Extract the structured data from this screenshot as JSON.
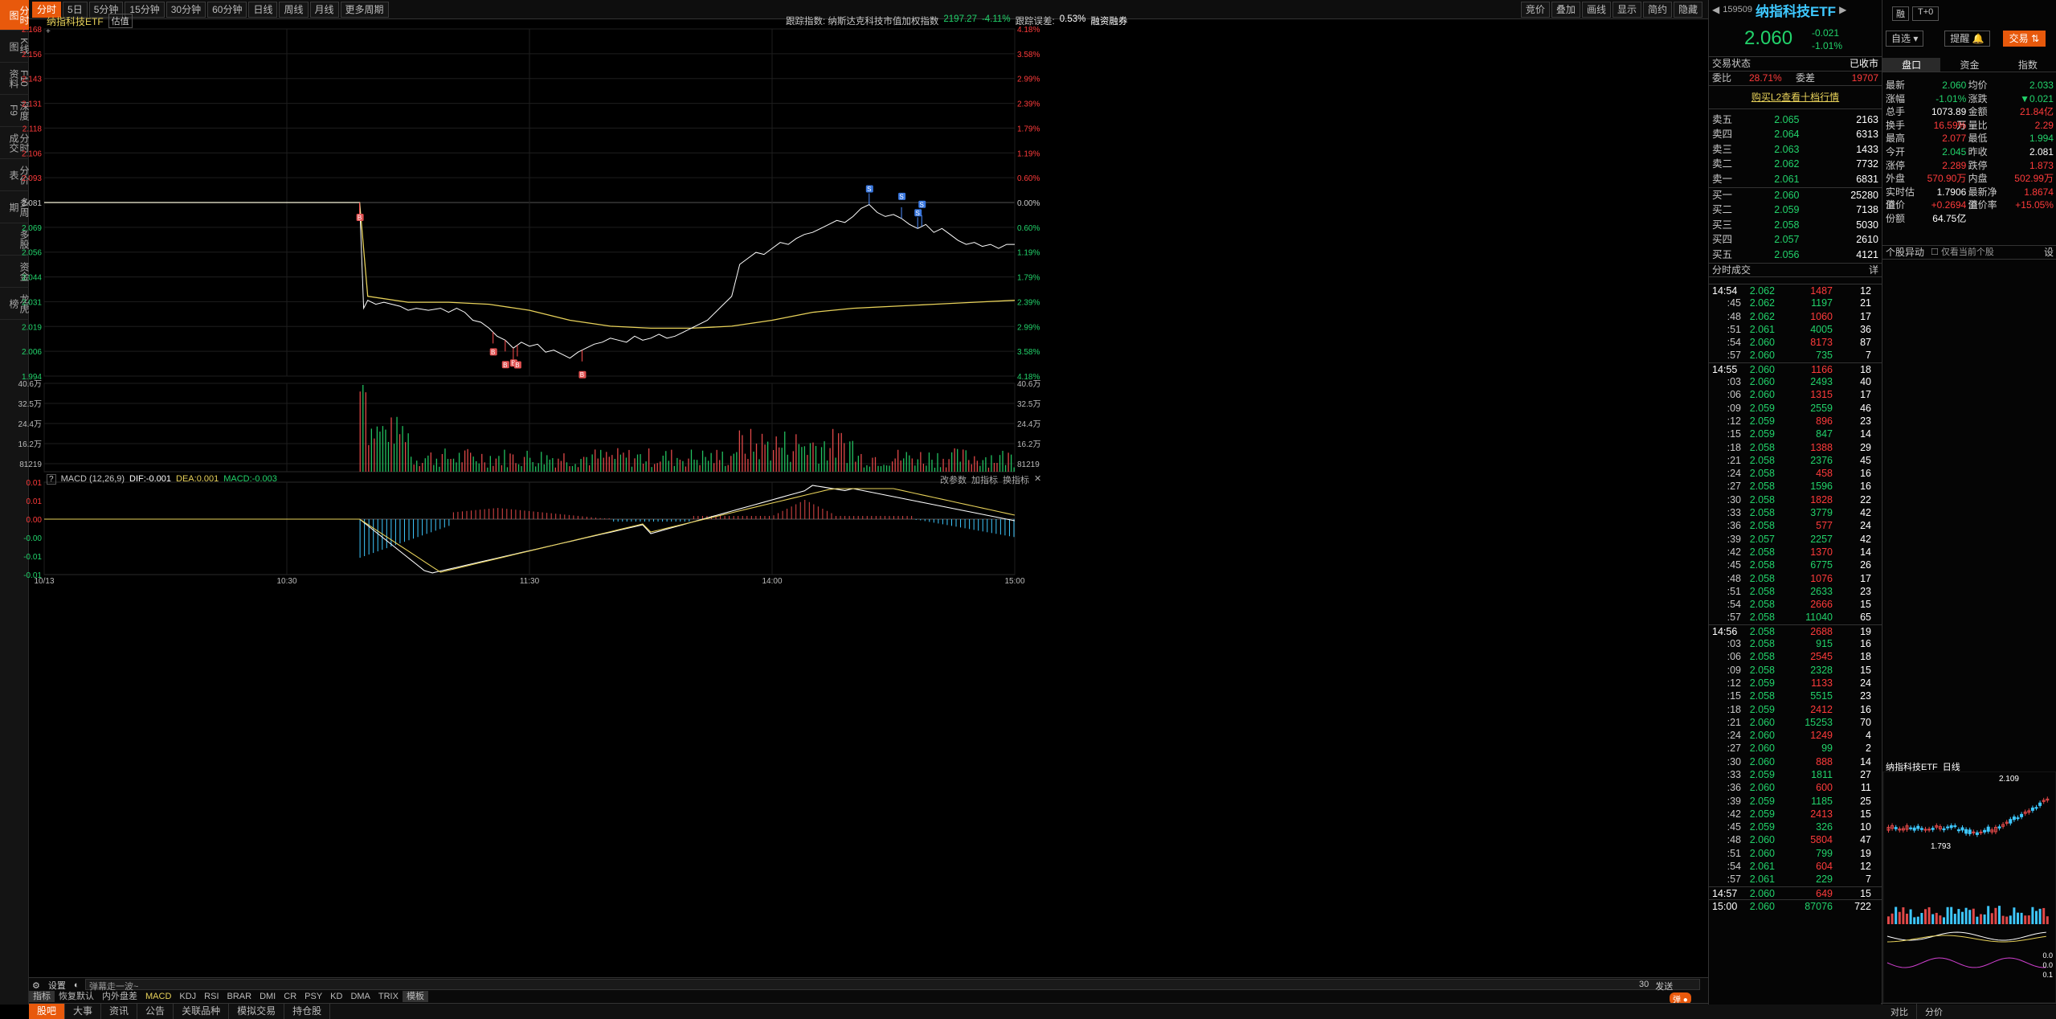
{
  "sidebar": {
    "items": [
      "分时图",
      "K线图",
      "F10资料",
      "深度F9",
      "分时成交",
      "分价表",
      "多周期",
      "多股",
      "资金",
      "龙虎榜"
    ]
  },
  "toolbar": {
    "buttons": [
      "分时",
      "5日",
      "5分钟",
      "15分钟",
      "30分钟",
      "60分钟",
      "日线",
      "周线",
      "月线",
      "更多周期"
    ],
    "right_buttons": [
      "竞价",
      "叠加",
      "画线",
      "显示",
      "简约",
      "隐藏"
    ]
  },
  "chart_header": {
    "name": "纳指科技ETF",
    "tag": "估值",
    "tracking_label": "跟踪指数: 纳斯达克科技市值加权指数",
    "tracking_value": "2197.27",
    "tracking_pct": "-4.11%",
    "error_label": "跟踪误差:",
    "error_value": "0.53%",
    "margin": "融资融券"
  },
  "colors": {
    "accent": "#e8590c",
    "up": "#ff3b3b",
    "down": "#22d36b",
    "avg": "#e8d25a",
    "price": "#ffffff"
  },
  "chart_data": [
    {
      "type": "line",
      "title": "纳指科技ETF",
      "ylim": [
        1.994,
        2.168
      ],
      "yticks": [
        "2.168",
        "2.156",
        "2.143",
        "2.131",
        "2.118",
        "2.106",
        "2.093",
        "2.081",
        "2.069",
        "2.056",
        "2.044",
        "2.031",
        "2.019",
        "2.006",
        "1.994"
      ],
      "pct_ticks": [
        "4.18%",
        "3.58%",
        "2.99%",
        "2.39%",
        "1.79%",
        "1.19%",
        "0.60%",
        "0.00%",
        "0.60%",
        "1.19%",
        "1.79%",
        "2.39%",
        "2.99%",
        "3.58%",
        "4.18%"
      ],
      "xticks": [
        "10/13",
        "10:30",
        "11:30",
        "14:00",
        "15:00"
      ],
      "prev_close": 2.081,
      "series": [
        {
          "name": "price",
          "x": [
            0,
            20,
            40,
            60,
            78,
            79,
            80,
            82,
            84,
            86,
            88,
            90,
            92,
            95,
            98,
            100,
            102,
            104,
            106,
            108,
            110,
            112,
            114,
            116,
            118,
            120,
            122,
            124,
            126,
            128,
            130,
            132,
            134,
            136,
            138,
            140,
            142,
            144,
            146,
            148,
            150,
            152,
            154,
            156,
            158,
            160,
            162,
            164,
            166,
            168,
            170,
            172,
            174,
            176,
            178,
            180,
            182,
            184,
            186,
            188,
            190,
            192,
            194,
            196,
            198,
            200,
            202,
            204,
            206,
            208,
            210,
            212,
            214,
            216,
            218,
            220,
            222,
            224,
            226,
            228,
            230,
            232,
            234,
            236,
            238,
            240
          ],
          "values": [
            2.081,
            2.081,
            2.081,
            2.081,
            2.081,
            2.028,
            2.032,
            2.03,
            2.031,
            2.03,
            2.029,
            2.027,
            2.028,
            2.027,
            2.028,
            2.026,
            2.028,
            2.026,
            2.022,
            2.021,
            2.018,
            2.014,
            2.012,
            2.008,
            2.011,
            2.009,
            2.01,
            2.006,
            2.007,
            2.005,
            2.003,
            2.006,
            2.008,
            2.01,
            2.011,
            2.013,
            2.012,
            2.011,
            2.014,
            2.012,
            2.013,
            2.015,
            2.013,
            2.014,
            2.016,
            2.018,
            2.02,
            2.022,
            2.026,
            2.03,
            2.034,
            2.05,
            2.053,
            2.056,
            2.055,
            2.058,
            2.061,
            2.06,
            2.063,
            2.065,
            2.066,
            2.068,
            2.07,
            2.072,
            2.071,
            2.074,
            2.078,
            2.08,
            2.076,
            2.074,
            2.075,
            2.073,
            2.07,
            2.068,
            2.07,
            2.066,
            2.068,
            2.065,
            2.062,
            2.06,
            2.061,
            2.059,
            2.06,
            2.058,
            2.06,
            2.06
          ]
        },
        {
          "name": "avg",
          "x": [
            0,
            78,
            80,
            90,
            100,
            110,
            120,
            130,
            140,
            150,
            160,
            170,
            180,
            190,
            200,
            210,
            220,
            230,
            240
          ],
          "values": [
            2.081,
            2.081,
            2.034,
            2.031,
            2.031,
            2.03,
            2.027,
            2.022,
            2.019,
            2.018,
            2.018,
            2.019,
            2.022,
            2.026,
            2.028,
            2.029,
            2.03,
            2.031,
            2.032
          ]
        }
      ],
      "markers": {
        "B": [
          78,
          111,
          114,
          116,
          117,
          133
        ],
        "S": [
          204,
          212,
          216,
          217
        ]
      }
    },
    {
      "type": "bar",
      "title": "成交量",
      "yticks": [
        "40.6万",
        "32.5万",
        "24.4万",
        "16.2万",
        "81219"
      ]
    },
    {
      "type": "line",
      "title": "MACD (12,26,9)",
      "dif": "DIF:-0.001",
      "dea": "DEA:0.001",
      "macd": "MACD:-0.003",
      "yticks": [
        "0.01",
        "0.01",
        "0.00",
        "-0.00",
        "-0.01",
        "-0.01"
      ],
      "tools": [
        "改参数",
        "加指标",
        "换指标"
      ]
    }
  ],
  "indicator_bar": {
    "left": [
      "设置",
      "皮肤"
    ],
    "input": "弹幕走一波~",
    "count": "30",
    "send": "发送",
    "tabs": [
      "指标",
      "恢复默认",
      "内外盘差",
      "MACD",
      "KDJ",
      "RSI",
      "BRAR",
      "DMI",
      "CR",
      "PSY",
      "KD",
      "DMA",
      "TRIX",
      "模板"
    ]
  },
  "quote": {
    "code": "159509",
    "name": "纳指科技ETF",
    "price": "2.060",
    "chg": "-0.021",
    "pct": "-1.01%",
    "btns": [
      "融",
      "T+0"
    ],
    "select": "自选",
    "remind": "提醒",
    "trade": "交易",
    "status_label": "交易状态",
    "status": "已收市",
    "wb_label": "委比",
    "wb": "28.71%",
    "wc_label": "委差",
    "wc": "19707",
    "l2": "购买L2查看十档行情",
    "asks": [
      [
        "卖五",
        "2.065",
        "2163"
      ],
      [
        "卖四",
        "2.064",
        "6313"
      ],
      [
        "卖三",
        "2.063",
        "1433"
      ],
      [
        "卖二",
        "2.062",
        "7732"
      ],
      [
        "卖一",
        "2.061",
        "6831"
      ]
    ],
    "bids": [
      [
        "买一",
        "2.060",
        "25280"
      ],
      [
        "买二",
        "2.059",
        "7138"
      ],
      [
        "买三",
        "2.058",
        "5030"
      ],
      [
        "买四",
        "2.057",
        "2610"
      ],
      [
        "买五",
        "2.056",
        "4121"
      ]
    ],
    "ticks_title": "分时成交",
    "ticks_more": "详",
    "ticks": [
      [
        "14:54",
        "2.062",
        "1487",
        "12"
      ],
      [
        ":45",
        "2.062",
        "1197",
        "21"
      ],
      [
        ":48",
        "2.062",
        "1060",
        "17"
      ],
      [
        ":51",
        "2.061",
        "4005",
        "36"
      ],
      [
        ":54",
        "2.060",
        "8173",
        "87"
      ],
      [
        ":57",
        "2.060",
        "735",
        "7"
      ],
      [
        "14:55",
        "2.060",
        "1166",
        "18"
      ],
      [
        ":03",
        "2.060",
        "2493",
        "40"
      ],
      [
        ":06",
        "2.060",
        "1315",
        "17"
      ],
      [
        ":09",
        "2.059",
        "2559",
        "46"
      ],
      [
        ":12",
        "2.059",
        "896",
        "23"
      ],
      [
        ":15",
        "2.059",
        "847",
        "14"
      ],
      [
        ":18",
        "2.058",
        "1388",
        "29"
      ],
      [
        ":21",
        "2.058",
        "2376",
        "45"
      ],
      [
        ":24",
        "2.058",
        "458",
        "16"
      ],
      [
        ":27",
        "2.058",
        "1596",
        "16"
      ],
      [
        ":30",
        "2.058",
        "1828",
        "22"
      ],
      [
        ":33",
        "2.058",
        "3779",
        "42"
      ],
      [
        ":36",
        "2.058",
        "577",
        "24"
      ],
      [
        ":39",
        "2.057",
        "2257",
        "42"
      ],
      [
        ":42",
        "2.058",
        "1370",
        "14"
      ],
      [
        ":45",
        "2.058",
        "6775",
        "26"
      ],
      [
        ":48",
        "2.058",
        "1076",
        "17"
      ],
      [
        ":51",
        "2.058",
        "2633",
        "23"
      ],
      [
        ":54",
        "2.058",
        "2666",
        "15"
      ],
      [
        ":57",
        "2.058",
        "11040",
        "65"
      ],
      [
        "14:56",
        "2.058",
        "2688",
        "19"
      ],
      [
        ":03",
        "2.058",
        "915",
        "16"
      ],
      [
        ":06",
        "2.058",
        "2545",
        "18"
      ],
      [
        ":09",
        "2.058",
        "2328",
        "15"
      ],
      [
        ":12",
        "2.059",
        "1133",
        "24"
      ],
      [
        ":15",
        "2.058",
        "5515",
        "23"
      ],
      [
        ":18",
        "2.059",
        "2412",
        "16"
      ],
      [
        ":21",
        "2.060",
        "15253",
        "70"
      ],
      [
        ":24",
        "2.060",
        "1249",
        "4"
      ],
      [
        ":27",
        "2.060",
        "99",
        "2"
      ],
      [
        ":30",
        "2.060",
        "888",
        "14"
      ],
      [
        ":33",
        "2.059",
        "1811",
        "27"
      ],
      [
        ":36",
        "2.060",
        "600",
        "11"
      ],
      [
        ":39",
        "2.059",
        "1185",
        "25"
      ],
      [
        ":42",
        "2.059",
        "2413",
        "15"
      ],
      [
        ":45",
        "2.059",
        "326",
        "10"
      ],
      [
        ":48",
        "2.060",
        "5804",
        "47"
      ],
      [
        ":51",
        "2.060",
        "799",
        "19"
      ],
      [
        ":54",
        "2.061",
        "604",
        "12"
      ],
      [
        ":57",
        "2.061",
        "229",
        "7"
      ],
      [
        "14:57",
        "2.060",
        "649",
        "15"
      ],
      [
        "15:00",
        "2.060",
        "87076",
        "722"
      ]
    ]
  },
  "panel2": {
    "tabs": [
      "盘口",
      "资金",
      "指数"
    ],
    "stats": [
      [
        "最新",
        "2.060",
        "均价",
        "2.033"
      ],
      [
        "涨幅",
        "-1.01%",
        "涨跌",
        "▼0.021"
      ],
      [
        "总手",
        "1073.89万",
        "金额",
        "21.84亿"
      ],
      [
        "换手",
        "16.59%",
        "量比",
        "2.29"
      ],
      [
        "最高",
        "2.077",
        "最低",
        "1.994"
      ],
      [
        "今开",
        "2.045",
        "昨收",
        "2.081"
      ],
      [
        "涨停",
        "2.289",
        "跌停",
        "1.873"
      ],
      [
        "外盘",
        "570.90万",
        "内盘",
        "502.99万"
      ],
      [
        "实时估值",
        "1.7906",
        "最新净值",
        "1.8674"
      ],
      [
        "溢价",
        "+0.2694",
        "溢价率",
        "+15.05%"
      ],
      [
        "份额",
        "64.75亿",
        "",
        ""
      ]
    ],
    "anomaly_title": "个股异动",
    "anomaly_check": "仅看当前个股",
    "anomaly_btn": "设",
    "mini_title": "纳指科技ETF",
    "mini_period": "日线",
    "mini_hi": "2.109",
    "mini_lo": "1.793",
    "bottom_tabs": [
      "对比",
      "分价"
    ],
    "mini_vals": [
      "0.0",
      "0.0",
      "0.1"
    ]
  },
  "bottom": {
    "tabs": [
      "股吧",
      "大事",
      "资讯",
      "公告",
      "关联品种",
      "模拟交易",
      "持仓股"
    ]
  }
}
